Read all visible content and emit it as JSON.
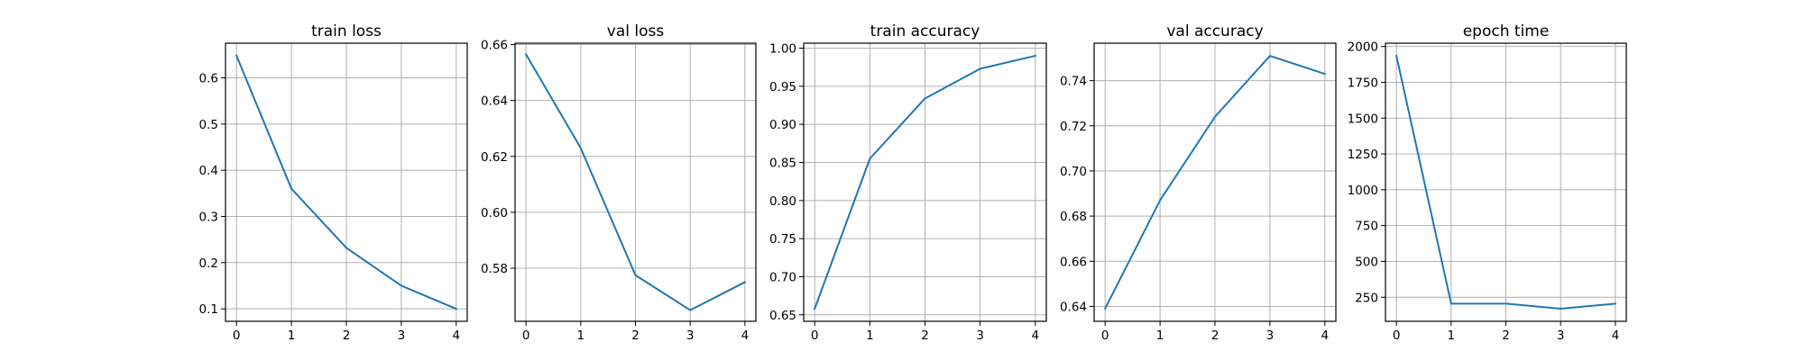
{
  "line_color": "#1f77b4",
  "chart_data": [
    {
      "type": "line",
      "title": "train loss",
      "x": [
        0,
        1,
        2,
        3,
        4
      ],
      "y": [
        0.648,
        0.36,
        0.232,
        0.15,
        0.1
      ],
      "xlim": [
        -0.2,
        4.2
      ],
      "ylim": [
        0.073,
        0.675
      ],
      "xticks": [
        0,
        1,
        2,
        3,
        4
      ],
      "yticks": [
        0.1,
        0.2,
        0.3,
        0.4,
        0.5,
        0.6
      ],
      "ytick_labels": [
        "0.1",
        "0.2",
        "0.3",
        "0.4",
        "0.5",
        "0.6"
      ],
      "grid": true
    },
    {
      "type": "line",
      "title": "val loss",
      "x": [
        0,
        1,
        2,
        3,
        4
      ],
      "y": [
        0.6565,
        0.623,
        0.5775,
        0.565,
        0.575
      ],
      "xlim": [
        -0.2,
        4.2
      ],
      "ylim": [
        0.561,
        0.6605
      ],
      "xticks": [
        0,
        1,
        2,
        3,
        4
      ],
      "yticks": [
        0.58,
        0.6,
        0.62,
        0.64,
        0.66
      ],
      "ytick_labels": [
        "0.58",
        "0.60",
        "0.62",
        "0.64",
        "0.66"
      ],
      "grid": true
    },
    {
      "type": "line",
      "title": "train accuracy",
      "x": [
        0,
        1,
        2,
        3,
        4
      ],
      "y": [
        0.658,
        0.855,
        0.934,
        0.973,
        0.99
      ],
      "xlim": [
        -0.2,
        4.2
      ],
      "ylim": [
        0.6415,
        1.0065
      ],
      "xticks": [
        0,
        1,
        2,
        3,
        4
      ],
      "yticks": [
        0.65,
        0.7,
        0.75,
        0.8,
        0.85,
        0.9,
        0.95,
        1.0
      ],
      "ytick_labels": [
        "0.65",
        "0.70",
        "0.75",
        "0.80",
        "0.85",
        "0.90",
        "0.95",
        "1.00"
      ],
      "grid": true
    },
    {
      "type": "line",
      "title": "val accuracy",
      "x": [
        0,
        1,
        2,
        3,
        4
      ],
      "y": [
        0.639,
        0.687,
        0.724,
        0.751,
        0.743
      ],
      "xlim": [
        -0.2,
        4.2
      ],
      "ylim": [
        0.6334,
        0.7566
      ],
      "xticks": [
        0,
        1,
        2,
        3,
        4
      ],
      "yticks": [
        0.64,
        0.66,
        0.68,
        0.7,
        0.72,
        0.74
      ],
      "ytick_labels": [
        "0.64",
        "0.66",
        "0.68",
        "0.70",
        "0.72",
        "0.74"
      ],
      "grid": true
    },
    {
      "type": "line",
      "title": "epoch time",
      "x": [
        0,
        1,
        2,
        3,
        4
      ],
      "y": [
        1935,
        205,
        205,
        170,
        205
      ],
      "xlim": [
        -0.2,
        4.2
      ],
      "ylim": [
        82,
        2023
      ],
      "xticks": [
        0,
        1,
        2,
        3,
        4
      ],
      "yticks": [
        250,
        500,
        750,
        1000,
        1250,
        1500,
        1750,
        2000
      ],
      "ytick_labels": [
        "250",
        "500",
        "750",
        "1000",
        "1250",
        "1500",
        "1750",
        "2000"
      ],
      "grid": true
    }
  ]
}
